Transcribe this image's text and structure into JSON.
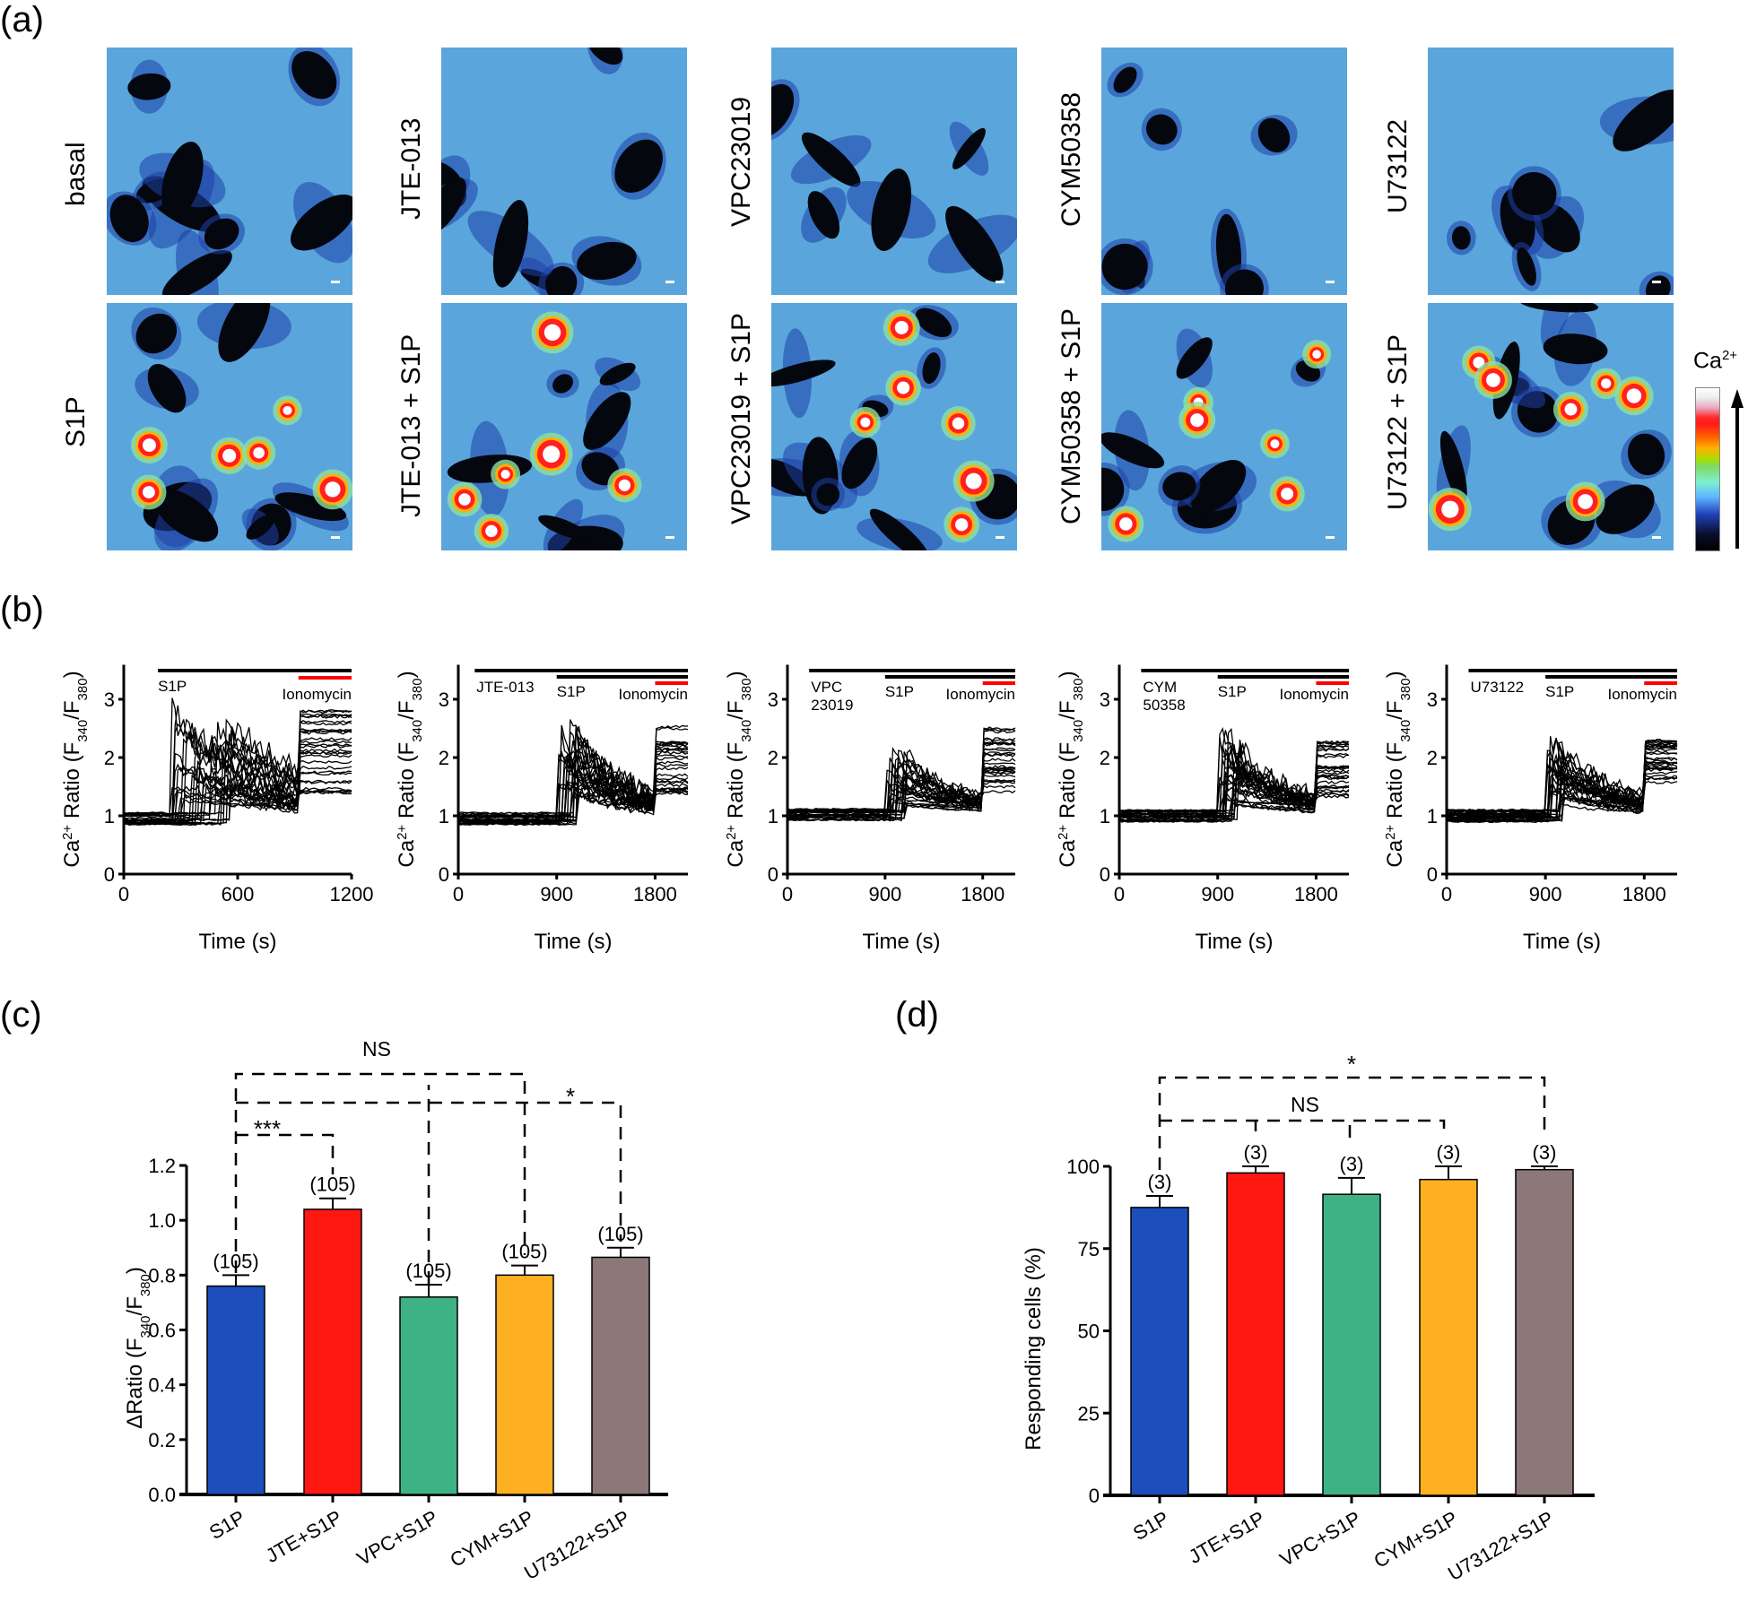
{
  "panel_labels": {
    "a": "(a)",
    "b": "(b)",
    "c": "(c)",
    "d": "(d)"
  },
  "micrographs": {
    "top_row": [
      "basal",
      "JTE-013",
      "VPC23019",
      "CYM50358",
      "U73122"
    ],
    "bottom_row": [
      "S1P",
      "JTE-013 + S1P",
      "VPC23019 + S1P",
      "CYM50358 + S1P",
      "U73122 + S1P"
    ],
    "colorbar": {
      "label": "Ca",
      "label_sup": "2+",
      "direction": "increasing upward",
      "colors": [
        "#000000",
        "#1f3fb8",
        "#5fb6ff",
        "#7ff0d0",
        "#a8e000",
        "#ffb000",
        "#ff1a1a",
        "#e9a9c1",
        "#ffffff"
      ]
    },
    "background_color": "#5aa6dc"
  },
  "chart_data": [
    {
      "id": "b1",
      "type": "line",
      "title": "",
      "xlabel": "Time (s)",
      "ylabel": "Ca2+ Ratio (F340/F380)",
      "xlim": [
        0,
        1200
      ],
      "ylim": [
        0,
        3.5
      ],
      "xticks": [
        "0",
        "600",
        "1200"
      ],
      "yticks": [
        "0",
        "1",
        "2",
        "3"
      ],
      "treatment_bars": [
        {
          "label": "S1P",
          "start": 180,
          "end": 1200,
          "color": "#000000"
        },
        {
          "label": "Ionomycin",
          "start": 920,
          "end": 1200,
          "color": "#ff0000"
        }
      ],
      "traces_summary": {
        "n_traces": "many",
        "baseline": 0.95,
        "response_onset_s": 240,
        "peak_max": 3.05,
        "ionomycin_plateau": [
          1.35,
          2.8
        ]
      }
    },
    {
      "id": "b2",
      "type": "line",
      "xlabel": "Time (s)",
      "ylabel": "Ca2+ Ratio (F340/F380)",
      "xlim": [
        0,
        2100
      ],
      "ylim": [
        0,
        3.5
      ],
      "xticks": [
        "0",
        "900",
        "1800"
      ],
      "yticks": [
        "0",
        "1",
        "2",
        "3"
      ],
      "treatment_bars": [
        {
          "label": "JTE-013",
          "start": 150,
          "end": 2100,
          "color": "#000000"
        },
        {
          "label": "S1P",
          "start": 900,
          "end": 2100,
          "color": "#000000"
        },
        {
          "label": "Ionomycin",
          "start": 1800,
          "end": 2100,
          "color": "#ff0000"
        }
      ],
      "traces_summary": {
        "baseline": 0.95,
        "response_onset_s": 900,
        "peak_max": 2.85,
        "ionomycin_plateau": [
          1.35,
          2.6
        ]
      }
    },
    {
      "id": "b3",
      "type": "line",
      "xlabel": "Time (s)",
      "ylabel": "Ca2+ Ratio (F340/F380)",
      "xlim": [
        0,
        2100
      ],
      "ylim": [
        0,
        3.5
      ],
      "xticks": [
        "0",
        "900",
        "1800"
      ],
      "yticks": [
        "0",
        "1",
        "2",
        "3"
      ],
      "treatment_bars": [
        {
          "label": "VPC 23019",
          "start": 200,
          "end": 2100,
          "color": "#000000"
        },
        {
          "label": "S1P",
          "start": 900,
          "end": 2100,
          "color": "#000000"
        },
        {
          "label": "Ionomycin",
          "start": 1800,
          "end": 2100,
          "color": "#ff0000"
        }
      ],
      "traces_summary": {
        "baseline": 1.02,
        "response_onset_s": 900,
        "peak_max": 2.2,
        "ionomycin_plateau": [
          1.4,
          2.5
        ]
      }
    },
    {
      "id": "b4",
      "type": "line",
      "xlabel": "Time (s)",
      "ylabel": "Ca2+ Ratio (F340/F380)",
      "xlim": [
        0,
        2100
      ],
      "ylim": [
        0,
        3.5
      ],
      "xticks": [
        "0",
        "900",
        "1800"
      ],
      "yticks": [
        "0",
        "1",
        "2",
        "3"
      ],
      "treatment_bars": [
        {
          "label": "CYM 50358",
          "start": 200,
          "end": 2100,
          "color": "#000000"
        },
        {
          "label": "S1P",
          "start": 900,
          "end": 2100,
          "color": "#000000"
        },
        {
          "label": "Ionomycin",
          "start": 1800,
          "end": 2100,
          "color": "#ff0000"
        }
      ],
      "traces_summary": {
        "baseline": 1.0,
        "response_onset_s": 900,
        "peak_max": 2.65,
        "ionomycin_plateau": [
          1.3,
          2.3
        ]
      }
    },
    {
      "id": "b5",
      "type": "line",
      "xlabel": "Time (s)",
      "ylabel": "Ca2+ Ratio (F340/F380)",
      "xlim": [
        0,
        2100
      ],
      "ylim": [
        0,
        3.5
      ],
      "xticks": [
        "0",
        "900",
        "1800"
      ],
      "yticks": [
        "0",
        "1",
        "2",
        "3"
      ],
      "treatment_bars": [
        {
          "label": "U73122",
          "start": 200,
          "end": 2100,
          "color": "#000000"
        },
        {
          "label": "S1P",
          "start": 900,
          "end": 2100,
          "color": "#000000"
        },
        {
          "label": "Ionomycin",
          "start": 1800,
          "end": 2100,
          "color": "#ff0000"
        }
      ],
      "traces_summary": {
        "baseline": 1.0,
        "response_onset_s": 900,
        "peak_max": 2.65,
        "ionomycin_plateau": [
          1.55,
          2.3
        ]
      }
    },
    {
      "id": "c",
      "type": "bar",
      "title": "",
      "xlabel": "",
      "ylabel": "ΔRatio (F340/F380)",
      "categories": [
        "S1P",
        "JTE+S1P",
        "VPC+S1P",
        "CYM+S1P",
        "U73122+S1P"
      ],
      "values": [
        0.76,
        1.04,
        0.72,
        0.8,
        0.865
      ],
      "errors": [
        0.04,
        0.04,
        0.045,
        0.035,
        0.035
      ],
      "n_labels": [
        "(105)",
        "(105)",
        "(105)",
        "(105)",
        "(105)"
      ],
      "colors": [
        "#1c4fbb",
        "#ff1712",
        "#3fb285",
        "#fdb022",
        "#8c7779"
      ],
      "ylim": [
        0,
        1.2
      ],
      "yticks": [
        "0.0",
        "0.2",
        "0.4",
        "0.6",
        "0.8",
        "1.0",
        "1.2"
      ],
      "significance": [
        {
          "from": "S1P",
          "to": [
            "VPC+S1P",
            "CYM+S1P"
          ],
          "label": "NS"
        },
        {
          "from": "S1P",
          "to": [
            "U73122+S1P"
          ],
          "label": "*"
        },
        {
          "from": "S1P",
          "to": [
            "JTE+S1P"
          ],
          "label": "***"
        }
      ]
    },
    {
      "id": "d",
      "type": "bar",
      "xlabel": "",
      "ylabel": "Responding cells (%)",
      "categories": [
        "S1P",
        "JTE+S1P",
        "VPC+S1P",
        "CYM+S1P",
        "U73122+S1P"
      ],
      "values": [
        87.5,
        98,
        91.5,
        96,
        99
      ],
      "errors": [
        3.5,
        2,
        5,
        4,
        1
      ],
      "n_labels": [
        "(3)",
        "(3)",
        "(3)",
        "(3)",
        "(3)"
      ],
      "colors": [
        "#1c4fbb",
        "#ff1712",
        "#3fb285",
        "#fdb022",
        "#8c7779"
      ],
      "ylim": [
        0,
        100
      ],
      "yticks": [
        "0",
        "25",
        "50",
        "75",
        "100"
      ],
      "significance": [
        {
          "from": "S1P",
          "to": [
            "U73122+S1P"
          ],
          "label": "*"
        },
        {
          "from": "S1P",
          "to": [
            "JTE+S1P",
            "VPC+S1P",
            "CYM+S1P"
          ],
          "label": "NS"
        }
      ]
    }
  ]
}
